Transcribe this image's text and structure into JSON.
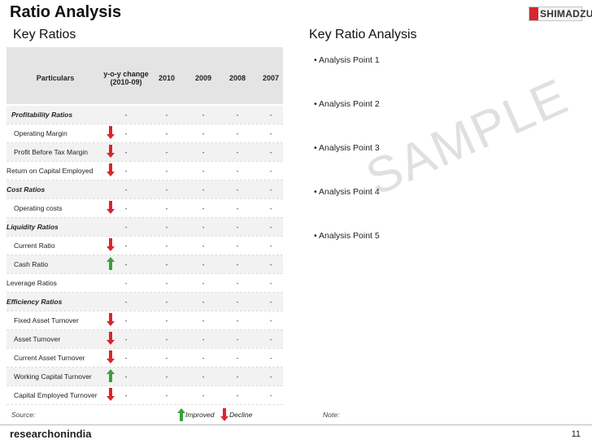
{
  "header": {
    "title": "Ratio Analysis",
    "left_heading": "Key Ratios",
    "right_heading": "Key Ratio Analysis",
    "logo": "SHIMADZU"
  },
  "table": {
    "columns": [
      "Particulars",
      "y-o-y change (2010-09)",
      "2010",
      "2009",
      "2008",
      "2007"
    ],
    "rows": [
      {
        "label": "Profitability Ratios",
        "style": "group",
        "trend": null,
        "cells": [
          "-",
          "-",
          "-",
          "-",
          "-"
        ]
      },
      {
        "label": "Operating Margin",
        "style": "item",
        "trend": "down",
        "cells": [
          "-",
          "-",
          "-",
          "-",
          "-"
        ]
      },
      {
        "label": "Profit Before Tax Margin",
        "style": "item",
        "trend": "down",
        "cells": [
          "-",
          "-",
          "-",
          "-",
          "-"
        ]
      },
      {
        "label": "Return on Capital Employed",
        "style": "plain",
        "trend": "down",
        "cells": [
          "-",
          "-",
          "-",
          "-",
          "-"
        ]
      },
      {
        "label": "Cost Ratios",
        "style": "group",
        "trend": null,
        "cells": [
          "-",
          "-",
          "-",
          "-",
          "-"
        ]
      },
      {
        "label": "Operating costs",
        "style": "item",
        "trend": "down",
        "cells": [
          "-",
          "-",
          "-",
          "-",
          "-"
        ]
      },
      {
        "label": "Liquidity Ratios",
        "style": "group",
        "trend": null,
        "cells": [
          "-",
          "-",
          "-",
          "-",
          "-"
        ]
      },
      {
        "label": "Current Ratio",
        "style": "item",
        "trend": "down",
        "cells": [
          "-",
          "-",
          "-",
          "-",
          "-"
        ]
      },
      {
        "label": "Cash Ratio",
        "style": "item",
        "trend": "up",
        "cells": [
          "-",
          "-",
          "-",
          "-",
          "-"
        ]
      },
      {
        "label": "Leverage Ratios",
        "style": "plain",
        "trend": null,
        "cells": [
          "-",
          "-",
          "-",
          "-",
          "-"
        ]
      },
      {
        "label": "Efficiency Ratios",
        "style": "group",
        "trend": null,
        "cells": [
          "-",
          "-",
          "-",
          "-",
          "-"
        ]
      },
      {
        "label": "Fixed Asset Turnover",
        "style": "item",
        "trend": "down",
        "cells": [
          "-",
          "-",
          "-",
          "-",
          "-"
        ]
      },
      {
        "label": "Asset Turnover",
        "style": "item",
        "trend": "down",
        "cells": [
          "-",
          "-",
          "-",
          "-",
          "-"
        ]
      },
      {
        "label": "Current Asset Turnover",
        "style": "item",
        "trend": "down",
        "cells": [
          "-",
          "-",
          "-",
          "-",
          "-"
        ]
      },
      {
        "label": "Working Capital Turnover",
        "style": "item",
        "trend": "up",
        "cells": [
          "-",
          "-",
          "-",
          "-",
          "-"
        ]
      },
      {
        "label": "Capital Employed Turnover",
        "style": "item",
        "trend": "down",
        "cells": [
          "-",
          "-",
          "-",
          "-",
          "-"
        ]
      }
    ]
  },
  "analysis_points": [
    "• Analysis Point 1",
    "• Analysis Point 2",
    "• Analysis Point 3",
    "• Analysis Point 4",
    "• Analysis Point 5"
  ],
  "watermark": "SAMPLE",
  "footer": {
    "source": "Source:",
    "improved": "Improved",
    "decline": "Decline",
    "note": "Note:",
    "brand": "researchonindia",
    "page": "11"
  }
}
